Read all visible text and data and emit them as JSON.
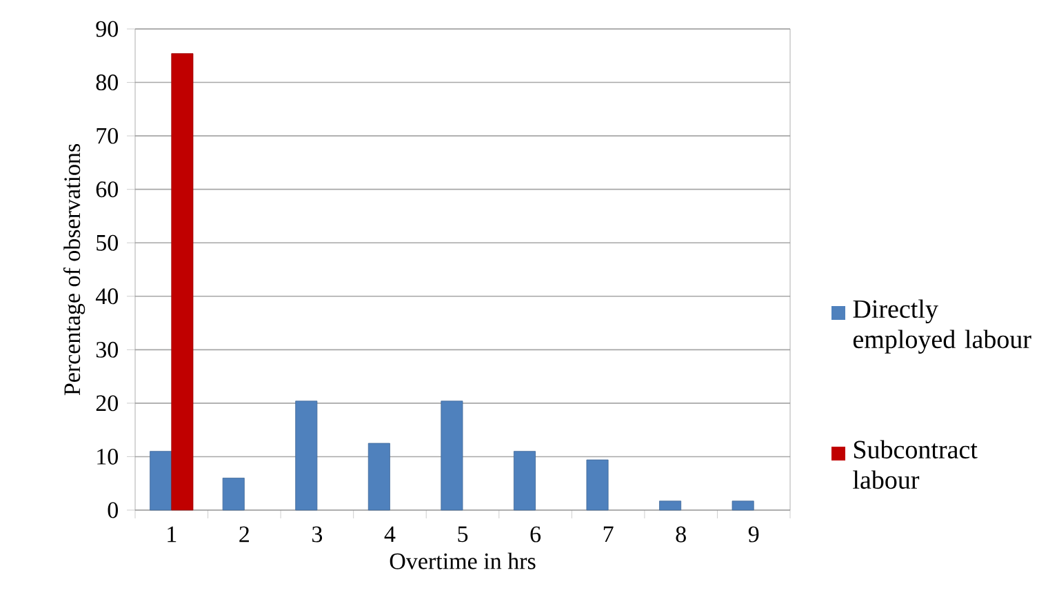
{
  "chart_data": {
    "type": "bar",
    "xlabel": "Overtime in hrs",
    "ylabel": "Percentage of observations",
    "categories": [
      "1",
      "2",
      "3",
      "4",
      "5",
      "6",
      "7",
      "8",
      "9"
    ],
    "series": [
      {
        "name": "Directly employed labour",
        "color": "#4f81bd",
        "values": [
          11,
          6,
          20.4,
          12.5,
          20.4,
          11,
          9.4,
          1.7,
          1.7
        ]
      },
      {
        "name": "Subcontract labour",
        "color": "#c00000",
        "values": [
          85.4,
          null,
          null,
          null,
          null,
          null,
          null,
          null,
          null
        ]
      }
    ],
    "ylim": [
      0,
      90
    ],
    "yticks": [
      0,
      10,
      20,
      30,
      40,
      50,
      60,
      70,
      80,
      90
    ],
    "grid": "y",
    "legend": "right"
  }
}
